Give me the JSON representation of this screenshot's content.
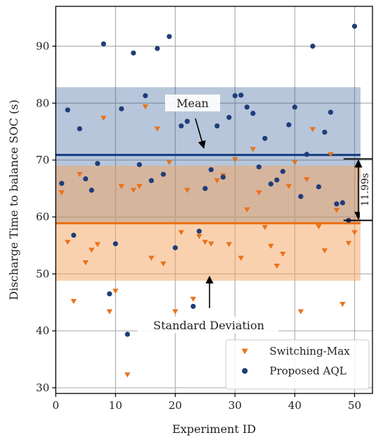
{
  "chart_data": {
    "type": "scatter",
    "xlabel": "Experiment ID",
    "ylabel": "Discharge Time to balance SOC (s)",
    "xlim": [
      0,
      53
    ],
    "ylim": [
      29,
      97
    ],
    "xticks": [
      0,
      10,
      20,
      30,
      40,
      50
    ],
    "yticks": [
      30,
      40,
      50,
      60,
      70,
      80,
      90
    ],
    "grid": true,
    "legend_position": "bottom-right",
    "series": [
      {
        "name": "Switching-Max",
        "marker": "triangle-down",
        "color": "#e8731a",
        "x": [
          1,
          2,
          3,
          4,
          5,
          6,
          7,
          8,
          9,
          10,
          11,
          12,
          13,
          14,
          15,
          16,
          17,
          18,
          19,
          20,
          21,
          22,
          23,
          24,
          25,
          26,
          27,
          28,
          29,
          30,
          31,
          32,
          33,
          34,
          35,
          36,
          37,
          38,
          39,
          40,
          41,
          42,
          43,
          44,
          45,
          46,
          47,
          48,
          49,
          50
        ],
        "y": [
          64.3,
          55.6,
          45.2,
          67.5,
          52.0,
          54.2,
          55.2,
          77.4,
          43.4,
          47.0,
          65.4,
          32.3,
          64.7,
          65.4,
          79.4,
          52.8,
          75.5,
          51.8,
          69.6,
          43.4,
          57.3,
          64.7,
          45.6,
          56.6,
          55.6,
          55.3,
          66.4,
          67.3,
          55.2,
          70.1,
          52.8,
          61.3,
          71.9,
          64.3,
          58.2,
          54.9,
          51.4,
          53.5,
          65.4,
          69.6,
          43.4,
          66.6,
          75.4,
          58.3,
          54.1,
          71.0,
          61.2,
          44.7,
          55.4,
          57.3
        ]
      },
      {
        "name": "Proposed AQL",
        "marker": "circle",
        "color": "#1f3d7a",
        "x": [
          1,
          2,
          3,
          4,
          5,
          6,
          7,
          8,
          9,
          10,
          11,
          12,
          13,
          14,
          15,
          16,
          17,
          18,
          19,
          20,
          21,
          22,
          23,
          24,
          25,
          26,
          27,
          28,
          29,
          30,
          31,
          32,
          33,
          34,
          35,
          36,
          37,
          38,
          39,
          40,
          41,
          42,
          43,
          44,
          45,
          46,
          47,
          48,
          49,
          50
        ],
        "y": [
          65.9,
          78.8,
          56.8,
          75.5,
          66.7,
          64.7,
          69.4,
          90.4,
          46.5,
          55.3,
          79.0,
          39.4,
          88.8,
          69.2,
          81.3,
          66.4,
          89.6,
          67.5,
          91.7,
          54.6,
          76.0,
          76.8,
          44.3,
          57.5,
          65.0,
          68.3,
          76.0,
          67.0,
          77.5,
          81.3,
          81.4,
          79.3,
          78.2,
          68.8,
          73.8,
          65.8,
          66.5,
          68.0,
          76.2,
          79.3,
          63.6,
          71.0,
          90.0,
          65.3,
          74.9,
          78.4,
          62.3,
          62.5,
          59.4,
          93.5
        ]
      }
    ],
    "bands": [
      {
        "series": "Proposed AQL",
        "mean": 70.9,
        "lower": 59.0,
        "upper": 82.8,
        "color": "#1f4e8c"
      },
      {
        "series": "Switching-Max",
        "mean": 58.9,
        "lower": 48.8,
        "upper": 69.0,
        "color": "#f5a460"
      }
    ],
    "annotations": {
      "mean_label": "Mean",
      "std_label": "Standard Deviation",
      "gap_label": "11.99s"
    }
  }
}
